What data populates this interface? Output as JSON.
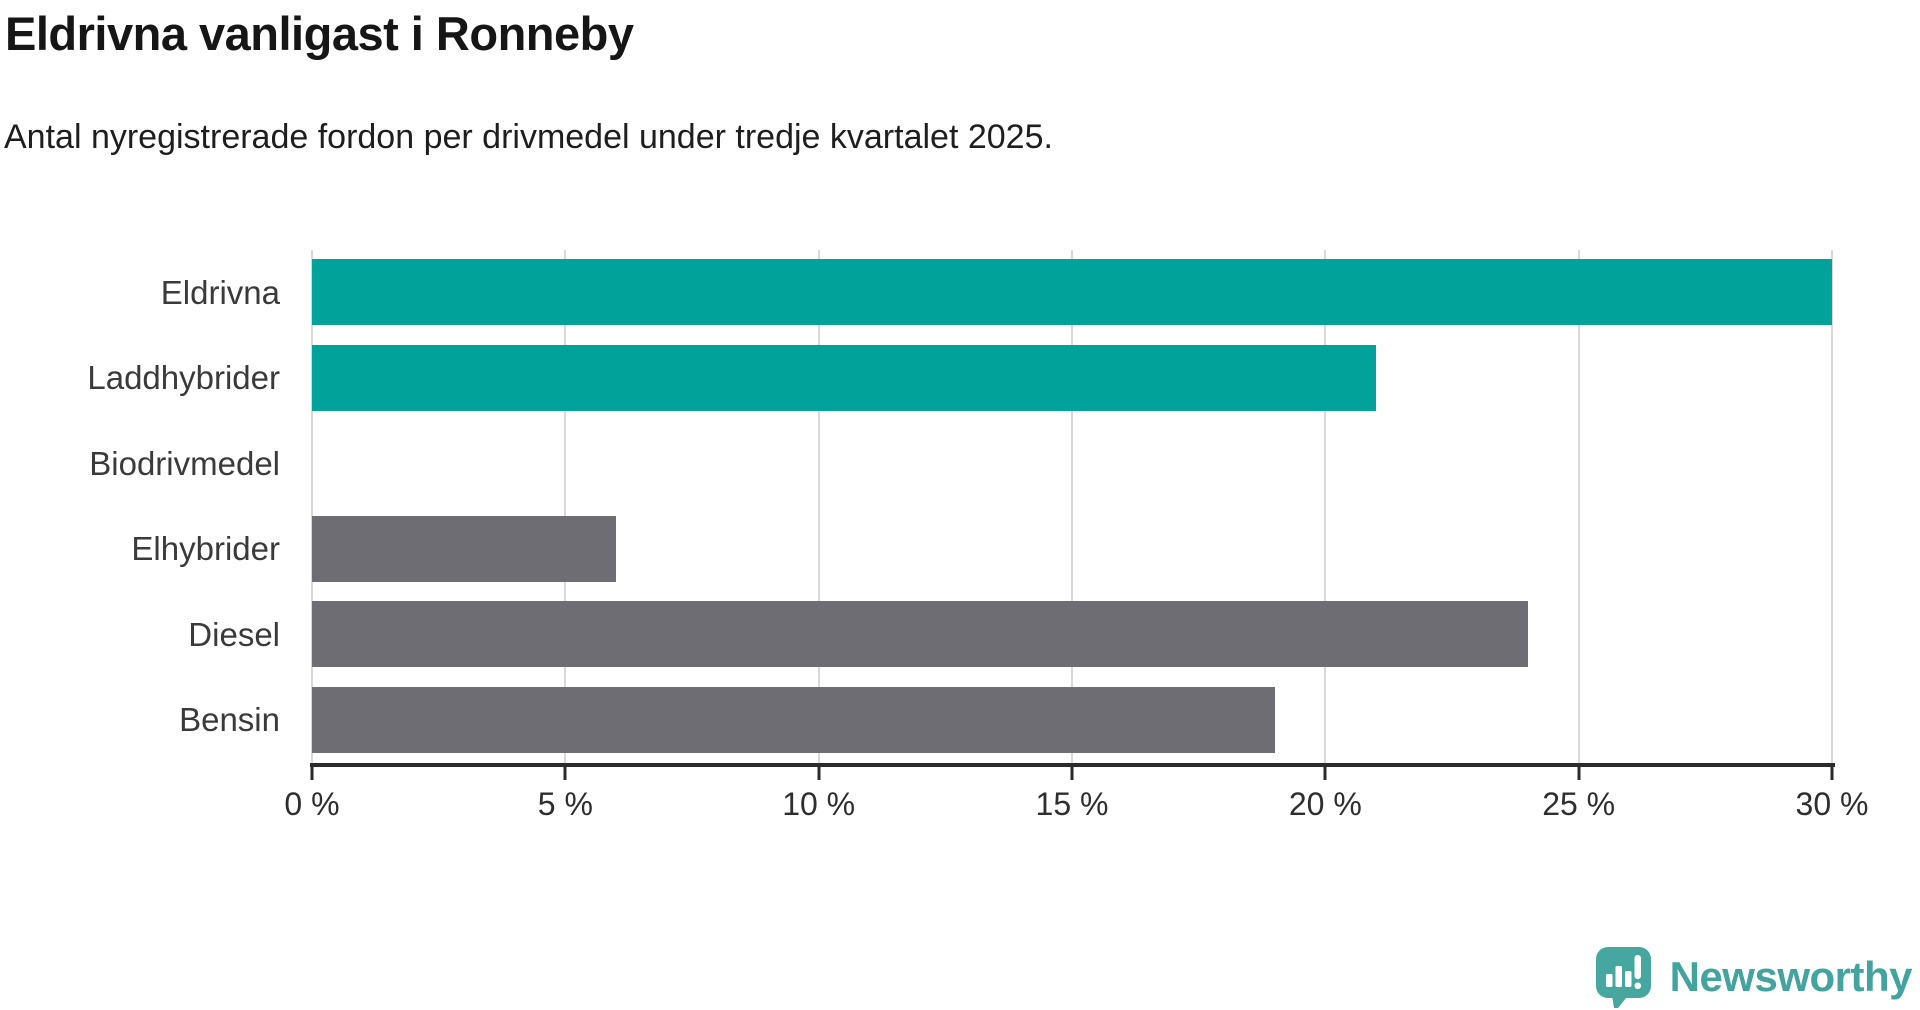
{
  "header": {
    "title": "Eldrivna vanligast i Ronneby",
    "subtitle": "Antal nyregistrerade fordon per drivmedel under tredje kvartalet 2025."
  },
  "chart_data": {
    "type": "bar",
    "orientation": "horizontal",
    "categories": [
      "Eldrivna",
      "Laddhybrider",
      "Biodrivmedel",
      "Elhybrider",
      "Diesel",
      "Bensin"
    ],
    "values": [
      30,
      21,
      0,
      6,
      24,
      19
    ],
    "unit": "%",
    "bar_colors": [
      "#00a29a",
      "#00a29a",
      "#00a29a",
      "#6e6d73",
      "#6e6d73",
      "#6e6d73"
    ],
    "title": "Eldrivna vanligast i Ronneby",
    "xlabel": "",
    "ylabel": "",
    "xlim": [
      0,
      30
    ],
    "x_ticks": [
      0,
      5,
      10,
      15,
      20,
      25,
      30
    ],
    "x_tick_labels": [
      "0 %",
      "5 %",
      "10 %",
      "15 %",
      "20 %",
      "25 %",
      "30 %"
    ],
    "grid": "vertical-only",
    "legend": "none"
  },
  "colors": {
    "teal": "#00a29a",
    "gray": "#6e6d73",
    "axis": "#2b2b2b",
    "gridline": "#d8d8d8",
    "logo": "#43a39e"
  },
  "branding": {
    "logo_text": "Newsworthy"
  }
}
